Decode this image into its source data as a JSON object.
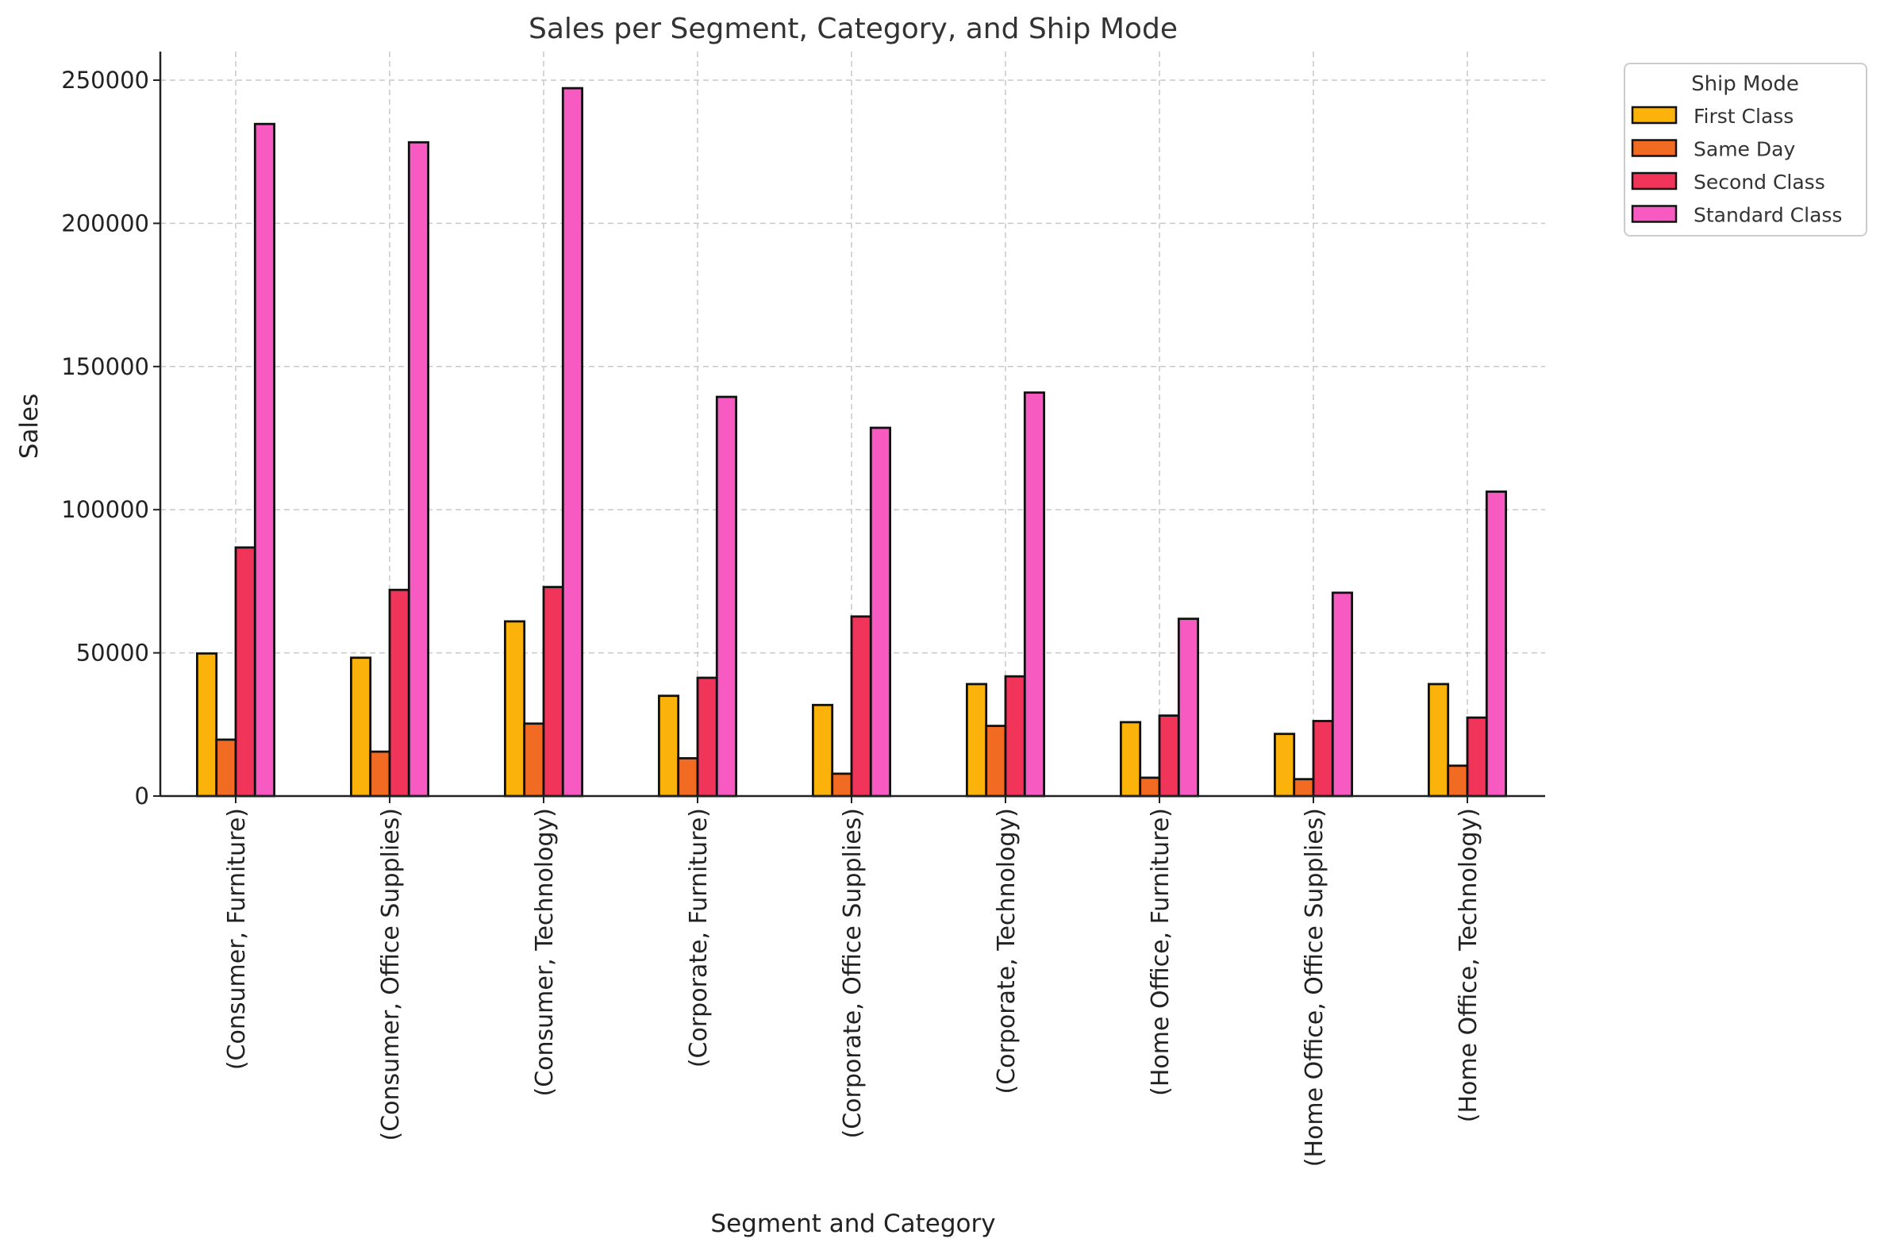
{
  "chart_data": {
    "type": "bar",
    "title": "Sales per Segment, Category, and Ship Mode",
    "xlabel": "Segment and Category",
    "ylabel": "Sales",
    "ylim": [
      0,
      260000
    ],
    "yticks": [
      0,
      50000,
      100000,
      150000,
      200000,
      250000
    ],
    "grid": true,
    "legend": {
      "title": "Ship Mode",
      "position": "outside-top-right"
    },
    "categories": [
      "(Consumer, Furniture)",
      "(Consumer, Office Supplies)",
      "(Consumer, Technology)",
      "(Corporate, Furniture)",
      "(Corporate, Office Supplies)",
      "(Corporate, Technology)",
      "(Home Office, Furniture)",
      "(Home Office, Office Supplies)",
      "(Home Office, Technology)"
    ],
    "series": [
      {
        "name": "First Class",
        "color": "#fbb20b",
        "values": [
          49800,
          48300,
          61000,
          35000,
          31800,
          39100,
          25800,
          21700,
          39100
        ]
      },
      {
        "name": "Same Day",
        "color": "#f26b22",
        "values": [
          19700,
          15500,
          25300,
          13200,
          7800,
          24500,
          6400,
          5900,
          10600
        ]
      },
      {
        "name": "Second Class",
        "color": "#f1345a",
        "values": [
          86800,
          72000,
          73000,
          41300,
          62700,
          41800,
          28100,
          26200,
          27400
        ]
      },
      {
        "name": "Standard Class",
        "color": "#f75bc2",
        "values": [
          234700,
          228300,
          247200,
          139400,
          128600,
          140900,
          61900,
          71000,
          106300
        ]
      }
    ]
  }
}
